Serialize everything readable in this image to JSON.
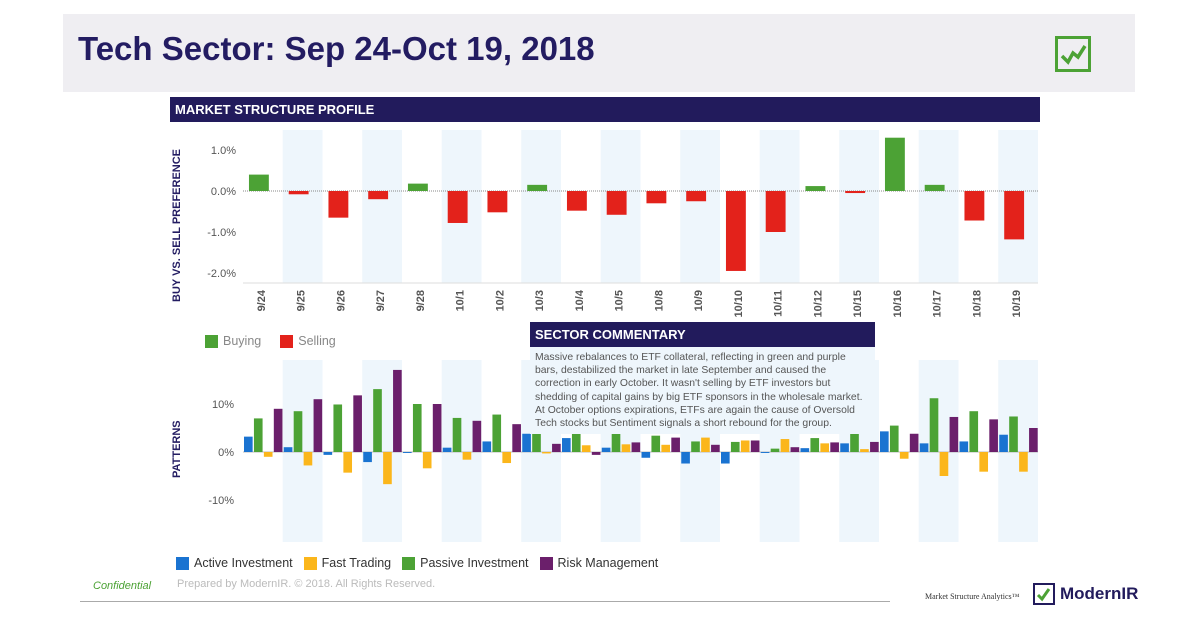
{
  "header": {
    "title": "Tech Sector: Sep 24-Oct 19, 2018",
    "icon": "check-chart-icon"
  },
  "profile": {
    "title": "MARKET STRUCTURE PROFILE"
  },
  "commentary": {
    "title": "SECTOR COMMENTARY",
    "text": "Massive rebalances to ETF collateral, reflecting in green and purple bars, destabilized the market in late September and caused the correction in early October. It wasn't selling by ETF investors but shedding of capital gains by big ETF sponsors in the wholesale market. At October options expirations, ETFs are again the cause of Oversold Tech stocks but Sentiment signals a short rebound for the group."
  },
  "footer": {
    "confidential": "Confidential",
    "prepared": "Prepared by ModernIR.  © 2018. All Rights Reserved.",
    "tagline": "Market Structure Analytics™",
    "logo_text": "ModernIR"
  },
  "colors": {
    "navy": "#221b5c",
    "buying": "#4ca235",
    "selling": "#e3221b",
    "active": "#1a73d1",
    "fast": "#fbb61b",
    "passive": "#4ca235",
    "risk": "#6b1f6b",
    "band": "#eef6fc"
  },
  "chart_data": [
    {
      "type": "bar",
      "ylabel": "BUY VS. SELL PREFERENCE",
      "ylim": [
        -2.2,
        1.5
      ],
      "yticks": [
        "1.0%",
        "0.0%",
        "-1.0%",
        "-2.0%"
      ],
      "ytick_values": [
        1,
        0,
        -1,
        -2
      ],
      "categories": [
        "9/24",
        "9/25",
        "9/26",
        "9/27",
        "9/28",
        "10/1",
        "10/2",
        "10/3",
        "10/4",
        "10/5",
        "10/8",
        "10/9",
        "10/10",
        "10/11",
        "10/12",
        "10/15",
        "10/16",
        "10/17",
        "10/18",
        "10/19"
      ],
      "values": [
        0.4,
        -0.08,
        -0.65,
        -0.2,
        0.18,
        -0.78,
        -0.52,
        0.15,
        -0.48,
        -0.58,
        -0.3,
        -0.25,
        -1.95,
        -1.0,
        0.12,
        -0.05,
        1.3,
        0.15,
        -0.72,
        -1.18
      ],
      "legend": [
        {
          "label": "Buying",
          "color": "#4ca235"
        },
        {
          "label": "Selling",
          "color": "#e3221b"
        }
      ]
    },
    {
      "type": "bar",
      "ylabel": "PATTERNS",
      "ylim": [
        -19,
        19
      ],
      "yticks": [
        "10%",
        "0%",
        "-10%"
      ],
      "ytick_values": [
        10,
        0,
        -10
      ],
      "series": [
        {
          "name": "Active Investment",
          "color": "#1a73d1",
          "values": [
            3.2,
            1,
            -0.6,
            -2.1,
            -0.2,
            0.9,
            2.2,
            3.8,
            2.9,
            0.9,
            -1.2,
            -2.4,
            -2.4,
            -0.2,
            0.8,
            1.8,
            4.3,
            1.8,
            2.2,
            3.6
          ]
        },
        {
          "name": "Passive Investment",
          "color": "#4ca235",
          "values": [
            7,
            8.5,
            9.9,
            13.1,
            10,
            7.1,
            7.8,
            4.9,
            4.4,
            3.9,
            3.4,
            2.2,
            2.1,
            0.7,
            2.9,
            4,
            5.5,
            11.2,
            8.5,
            7.4
          ]
        },
        {
          "name": "Fast Trading",
          "color": "#fbb61b",
          "values": [
            -1,
            -2.8,
            -4.3,
            -6.7,
            -3.4,
            -1.6,
            -2.3,
            -0.3,
            1.4,
            1.6,
            1.5,
            3,
            2.4,
            2.7,
            1.8,
            0.6,
            -1.4,
            -5,
            -4.1,
            -4.1
          ]
        },
        {
          "name": "Risk Management",
          "color": "#6b1f6b",
          "values": [
            9,
            11,
            11.8,
            17.1,
            10,
            6.5,
            5.8,
            1.7,
            -0.6,
            2,
            3,
            1.5,
            2.4,
            1,
            2,
            2.1,
            3.8,
            7.3,
            6.8,
            5
          ]
        }
      ],
      "legend": [
        {
          "label": "Active Investment",
          "color": "#1a73d1"
        },
        {
          "label": "Fast Trading",
          "color": "#fbb61b"
        },
        {
          "label": "Passive Investment",
          "color": "#4ca235"
        },
        {
          "label": "Risk Management",
          "color": "#6b1f6b"
        }
      ]
    }
  ]
}
